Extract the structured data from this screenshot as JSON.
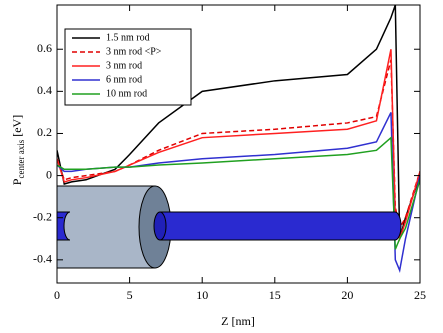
{
  "chart_data": {
    "type": "line",
    "x_label": "Z [nm]",
    "y_label": {
      "main": "P",
      "sub": "center axis",
      "unit": "[eV]"
    },
    "x": [
      0,
      0.5,
      1,
      2,
      4,
      5,
      7,
      10,
      15,
      20,
      22,
      23,
      23.3,
      23.6,
      24,
      25
    ],
    "series": [
      {
        "name": "1.5 nm rod",
        "color": "#000000",
        "dash": false,
        "values": [
          0.12,
          -0.04,
          -0.03,
          -0.02,
          0.03,
          0.1,
          0.25,
          0.4,
          0.45,
          0.48,
          0.6,
          0.75,
          0.81,
          -0.3,
          -0.2,
          0.0
        ]
      },
      {
        "name": "3 nm rod <P>",
        "color": "#e00000",
        "dash": true,
        "values": [
          0.08,
          -0.02,
          -0.01,
          0.0,
          0.02,
          0.05,
          0.12,
          0.2,
          0.22,
          0.25,
          0.28,
          0.55,
          -0.15,
          -0.25,
          -0.2,
          0.02
        ]
      },
      {
        "name": "3 nm rod",
        "color": "#ff2020",
        "dash": false,
        "values": [
          0.08,
          -0.03,
          -0.02,
          -0.01,
          0.02,
          0.05,
          0.11,
          0.18,
          0.2,
          0.22,
          0.26,
          0.6,
          -0.2,
          -0.3,
          -0.22,
          0.02
        ]
      },
      {
        "name": "6 nm rod",
        "color": "#3030d0",
        "dash": false,
        "values": [
          0.05,
          0.02,
          0.02,
          0.03,
          0.04,
          0.04,
          0.06,
          0.08,
          0.1,
          0.13,
          0.16,
          0.3,
          -0.4,
          -0.45,
          -0.3,
          0.0
        ]
      },
      {
        "name": "10 nm rod",
        "color": "#20a020",
        "dash": false,
        "values": [
          0.05,
          0.03,
          0.03,
          0.03,
          0.04,
          0.04,
          0.05,
          0.06,
          0.08,
          0.1,
          0.12,
          0.18,
          -0.35,
          -0.3,
          -0.25,
          -0.02
        ]
      }
    ],
    "xlim": [
      0,
      25
    ],
    "xticks": [
      0,
      5,
      10,
      15,
      20,
      25
    ],
    "ylim": [
      -0.51,
      0.81
    ],
    "yticks": [
      -0.4,
      -0.2,
      0,
      0.2,
      0.4,
      0.6
    ],
    "legend": "top-left"
  }
}
